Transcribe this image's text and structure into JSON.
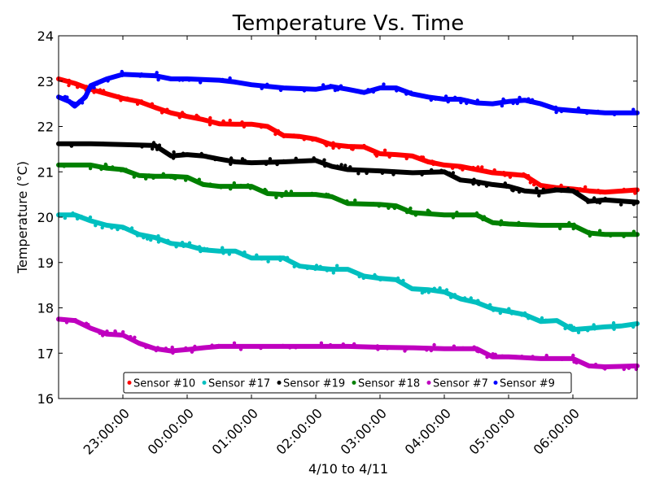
{
  "chart_data": {
    "type": "scatter",
    "title": "Temperature Vs. Time",
    "xlabel": "4/10 to 4/11",
    "ylabel": "Temperature (°C)",
    "xlim": [
      "2023-04-10T22:00:00",
      "2023-04-11T07:00:00"
    ],
    "ylim": [
      16,
      24
    ],
    "yticks": [
      16,
      17,
      18,
      19,
      20,
      21,
      22,
      23,
      24
    ],
    "xticks": [
      {
        "t": "2023-04-10T23:00:00",
        "label": "23:00:00"
      },
      {
        "t": "2023-04-11T00:00:00",
        "label": "00:00:00"
      },
      {
        "t": "2023-04-11T01:00:00",
        "label": "01:00:00"
      },
      {
        "t": "2023-04-11T02:00:00",
        "label": "02:00:00"
      },
      {
        "t": "2023-04-11T03:00:00",
        "label": "03:00:00"
      },
      {
        "t": "2023-04-11T04:00:00",
        "label": "04:00:00"
      },
      {
        "t": "2023-04-11T05:00:00",
        "label": "05:00:00"
      },
      {
        "t": "2023-04-11T06:00:00",
        "label": "06:00:00"
      }
    ],
    "grid": false,
    "legend": {
      "placement": "bottom-center",
      "ncol": 6
    },
    "series": [
      {
        "name": "Sensor #10",
        "color": "#ff0000",
        "points": [
          [
            "2023-04-10T22:00:00",
            23.05
          ],
          [
            "2023-04-10T22:15:00",
            22.95
          ],
          [
            "2023-04-10T22:30:00",
            22.82
          ],
          [
            "2023-04-10T22:45:00",
            22.72
          ],
          [
            "2023-04-10T23:00:00",
            22.62
          ],
          [
            "2023-04-10T23:15:00",
            22.55
          ],
          [
            "2023-04-10T23:30:00",
            22.42
          ],
          [
            "2023-04-10T23:45:00",
            22.3
          ],
          [
            "2023-04-11T00:00:00",
            22.22
          ],
          [
            "2023-04-11T00:15:00",
            22.15
          ],
          [
            "2023-04-11T00:30:00",
            22.06
          ],
          [
            "2023-04-11T00:45:00",
            22.05
          ],
          [
            "2023-04-11T01:00:00",
            22.05
          ],
          [
            "2023-04-11T01:15:00",
            22.0
          ],
          [
            "2023-04-11T01:30:00",
            21.8
          ],
          [
            "2023-04-11T01:45:00",
            21.78
          ],
          [
            "2023-04-11T02:00:00",
            21.72
          ],
          [
            "2023-04-11T02:15:00",
            21.6
          ],
          [
            "2023-04-11T02:30:00",
            21.56
          ],
          [
            "2023-04-11T02:45:00",
            21.55
          ],
          [
            "2023-04-11T03:00:00",
            21.4
          ],
          [
            "2023-04-11T03:15:00",
            21.38
          ],
          [
            "2023-04-11T03:30:00",
            21.35
          ],
          [
            "2023-04-11T03:45:00",
            21.22
          ],
          [
            "2023-04-11T04:00:00",
            21.15
          ],
          [
            "2023-04-11T04:15:00",
            21.12
          ],
          [
            "2023-04-11T04:30:00",
            21.05
          ],
          [
            "2023-04-11T04:45:00",
            20.98
          ],
          [
            "2023-04-11T05:00:00",
            20.95
          ],
          [
            "2023-04-11T05:15:00",
            20.92
          ],
          [
            "2023-04-11T05:30:00",
            20.7
          ],
          [
            "2023-04-11T05:45:00",
            20.65
          ],
          [
            "2023-04-11T06:00:00",
            20.62
          ],
          [
            "2023-04-11T06:15:00",
            20.58
          ],
          [
            "2023-04-11T06:30:00",
            20.55
          ],
          [
            "2023-04-11T07:00:00",
            20.6
          ]
        ]
      },
      {
        "name": "Sensor #17",
        "color": "#00bfbf",
        "points": [
          [
            "2023-04-10T22:00:00",
            20.05
          ],
          [
            "2023-04-10T22:15:00",
            20.05
          ],
          [
            "2023-04-10T22:30:00",
            19.92
          ],
          [
            "2023-04-10T22:45:00",
            19.82
          ],
          [
            "2023-04-10T23:00:00",
            19.78
          ],
          [
            "2023-04-10T23:15:00",
            19.62
          ],
          [
            "2023-04-10T23:30:00",
            19.55
          ],
          [
            "2023-04-10T23:45:00",
            19.42
          ],
          [
            "2023-04-11T00:00:00",
            19.38
          ],
          [
            "2023-04-11T00:15:00",
            19.28
          ],
          [
            "2023-04-11T00:30:00",
            19.25
          ],
          [
            "2023-04-11T00:45:00",
            19.25
          ],
          [
            "2023-04-11T01:00:00",
            19.1
          ],
          [
            "2023-04-11T01:15:00",
            19.1
          ],
          [
            "2023-04-11T01:30:00",
            19.1
          ],
          [
            "2023-04-11T01:45:00",
            18.92
          ],
          [
            "2023-04-11T02:00:00",
            18.88
          ],
          [
            "2023-04-11T02:15:00",
            18.85
          ],
          [
            "2023-04-11T02:30:00",
            18.85
          ],
          [
            "2023-04-11T02:45:00",
            18.7
          ],
          [
            "2023-04-11T03:00:00",
            18.65
          ],
          [
            "2023-04-11T03:15:00",
            18.62
          ],
          [
            "2023-04-11T03:30:00",
            18.42
          ],
          [
            "2023-04-11T03:45:00",
            18.4
          ],
          [
            "2023-04-11T04:00:00",
            18.35
          ],
          [
            "2023-04-11T04:15:00",
            18.2
          ],
          [
            "2023-04-11T04:30:00",
            18.12
          ],
          [
            "2023-04-11T04:45:00",
            17.98
          ],
          [
            "2023-04-11T05:00:00",
            17.92
          ],
          [
            "2023-04-11T05:15:00",
            17.85
          ],
          [
            "2023-04-11T05:30:00",
            17.7
          ],
          [
            "2023-04-11T05:45:00",
            17.72
          ],
          [
            "2023-04-11T06:00:00",
            17.52
          ],
          [
            "2023-04-11T06:15:00",
            17.55
          ],
          [
            "2023-04-11T06:30:00",
            17.58
          ],
          [
            "2023-04-11T06:45:00",
            17.6
          ],
          [
            "2023-04-11T07:00:00",
            17.65
          ]
        ]
      },
      {
        "name": "Sensor #19",
        "color": "#000000",
        "points": [
          [
            "2023-04-10T22:00:00",
            21.62
          ],
          [
            "2023-04-10T22:30:00",
            21.62
          ],
          [
            "2023-04-10T23:00:00",
            21.6
          ],
          [
            "2023-04-10T23:30:00",
            21.58
          ],
          [
            "2023-04-10T23:45:00",
            21.35
          ],
          [
            "2023-04-11T00:00:00",
            21.38
          ],
          [
            "2023-04-11T00:15:00",
            21.35
          ],
          [
            "2023-04-11T00:30:00",
            21.28
          ],
          [
            "2023-04-11T00:45:00",
            21.22
          ],
          [
            "2023-04-11T01:00:00",
            21.2
          ],
          [
            "2023-04-11T01:30:00",
            21.22
          ],
          [
            "2023-04-11T02:00:00",
            21.25
          ],
          [
            "2023-04-11T02:15:00",
            21.12
          ],
          [
            "2023-04-11T02:30:00",
            21.05
          ],
          [
            "2023-04-11T03:00:00",
            21.02
          ],
          [
            "2023-04-11T03:30:00",
            20.98
          ],
          [
            "2023-04-11T04:00:00",
            21.0
          ],
          [
            "2023-04-11T04:15:00",
            20.82
          ],
          [
            "2023-04-11T04:30:00",
            20.78
          ],
          [
            "2023-04-11T04:45:00",
            20.72
          ],
          [
            "2023-04-11T05:00:00",
            20.68
          ],
          [
            "2023-04-11T05:15:00",
            20.58
          ],
          [
            "2023-04-11T05:30:00",
            20.55
          ],
          [
            "2023-04-11T05:45:00",
            20.6
          ],
          [
            "2023-04-11T06:00:00",
            20.58
          ],
          [
            "2023-04-11T06:15:00",
            20.35
          ],
          [
            "2023-04-11T06:30:00",
            20.38
          ],
          [
            "2023-04-11T07:00:00",
            20.33
          ]
        ]
      },
      {
        "name": "Sensor #18",
        "color": "#008000",
        "points": [
          [
            "2023-04-10T22:00:00",
            21.15
          ],
          [
            "2023-04-10T22:30:00",
            21.15
          ],
          [
            "2023-04-10T22:45:00",
            21.08
          ],
          [
            "2023-04-10T23:00:00",
            21.05
          ],
          [
            "2023-04-10T23:15:00",
            20.92
          ],
          [
            "2023-04-10T23:30:00",
            20.9
          ],
          [
            "2023-04-10T23:45:00",
            20.9
          ],
          [
            "2023-04-11T00:00:00",
            20.88
          ],
          [
            "2023-04-11T00:15:00",
            20.72
          ],
          [
            "2023-04-11T00:30:00",
            20.68
          ],
          [
            "2023-04-11T00:45:00",
            20.68
          ],
          [
            "2023-04-11T01:00:00",
            20.68
          ],
          [
            "2023-04-11T01:15:00",
            20.52
          ],
          [
            "2023-04-11T01:30:00",
            20.5
          ],
          [
            "2023-04-11T02:00:00",
            20.5
          ],
          [
            "2023-04-11T02:15:00",
            20.45
          ],
          [
            "2023-04-11T02:30:00",
            20.3
          ],
          [
            "2023-04-11T03:00:00",
            20.28
          ],
          [
            "2023-04-11T03:15:00",
            20.25
          ],
          [
            "2023-04-11T03:30:00",
            20.1
          ],
          [
            "2023-04-11T04:00:00",
            20.05
          ],
          [
            "2023-04-11T04:30:00",
            20.05
          ],
          [
            "2023-04-11T04:45:00",
            19.88
          ],
          [
            "2023-04-11T05:00:00",
            19.85
          ],
          [
            "2023-04-11T05:30:00",
            19.82
          ],
          [
            "2023-04-11T06:00:00",
            19.82
          ],
          [
            "2023-04-11T06:15:00",
            19.65
          ],
          [
            "2023-04-11T06:30:00",
            19.62
          ],
          [
            "2023-04-11T07:00:00",
            19.62
          ]
        ]
      },
      {
        "name": "Sensor #7",
        "color": "#bf00bf",
        "points": [
          [
            "2023-04-10T22:00:00",
            17.75
          ],
          [
            "2023-04-10T22:15:00",
            17.72
          ],
          [
            "2023-04-10T22:30:00",
            17.55
          ],
          [
            "2023-04-10T22:45:00",
            17.42
          ],
          [
            "2023-04-10T23:00:00",
            17.4
          ],
          [
            "2023-04-10T23:15:00",
            17.22
          ],
          [
            "2023-04-10T23:30:00",
            17.1
          ],
          [
            "2023-04-10T23:45:00",
            17.05
          ],
          [
            "2023-04-11T00:00:00",
            17.08
          ],
          [
            "2023-04-11T00:15:00",
            17.12
          ],
          [
            "2023-04-11T00:30:00",
            17.15
          ],
          [
            "2023-04-11T01:00:00",
            17.15
          ],
          [
            "2023-04-11T01:30:00",
            17.15
          ],
          [
            "2023-04-11T02:00:00",
            17.15
          ],
          [
            "2023-04-11T02:30:00",
            17.15
          ],
          [
            "2023-04-11T03:00:00",
            17.13
          ],
          [
            "2023-04-11T03:30:00",
            17.12
          ],
          [
            "2023-04-11T04:00:00",
            17.1
          ],
          [
            "2023-04-11T04:30:00",
            17.1
          ],
          [
            "2023-04-11T04:45:00",
            16.92
          ],
          [
            "2023-04-11T05:00:00",
            16.92
          ],
          [
            "2023-04-11T05:30:00",
            16.88
          ],
          [
            "2023-04-11T06:00:00",
            16.88
          ],
          [
            "2023-04-11T06:15:00",
            16.72
          ],
          [
            "2023-04-11T06:30:00",
            16.7
          ],
          [
            "2023-04-11T07:00:00",
            16.72
          ]
        ]
      },
      {
        "name": "Sensor #9",
        "color": "#0000ff",
        "points": [
          [
            "2023-04-10T22:00:00",
            22.65
          ],
          [
            "2023-04-10T22:10:00",
            22.55
          ],
          [
            "2023-04-10T22:15:00",
            22.45
          ],
          [
            "2023-04-10T22:25:00",
            22.65
          ],
          [
            "2023-04-10T22:30:00",
            22.9
          ],
          [
            "2023-04-10T22:45:00",
            23.05
          ],
          [
            "2023-04-10T23:00:00",
            23.15
          ],
          [
            "2023-04-10T23:30:00",
            23.12
          ],
          [
            "2023-04-10T23:45:00",
            23.05
          ],
          [
            "2023-04-11T00:00:00",
            23.05
          ],
          [
            "2023-04-11T00:30:00",
            23.02
          ],
          [
            "2023-04-11T00:45:00",
            22.98
          ],
          [
            "2023-04-11T01:00:00",
            22.92
          ],
          [
            "2023-04-11T01:30:00",
            22.85
          ],
          [
            "2023-04-11T02:00:00",
            22.82
          ],
          [
            "2023-04-11T02:15:00",
            22.88
          ],
          [
            "2023-04-11T02:30:00",
            22.82
          ],
          [
            "2023-04-11T02:45:00",
            22.75
          ],
          [
            "2023-04-11T03:00:00",
            22.85
          ],
          [
            "2023-04-11T03:15:00",
            22.85
          ],
          [
            "2023-04-11T03:30:00",
            22.72
          ],
          [
            "2023-04-11T03:45:00",
            22.65
          ],
          [
            "2023-04-11T04:00:00",
            22.6
          ],
          [
            "2023-04-11T04:15:00",
            22.6
          ],
          [
            "2023-04-11T04:30:00",
            22.52
          ],
          [
            "2023-04-11T04:45:00",
            22.5
          ],
          [
            "2023-04-11T05:00:00",
            22.55
          ],
          [
            "2023-04-11T05:15:00",
            22.58
          ],
          [
            "2023-04-11T05:30:00",
            22.5
          ],
          [
            "2023-04-11T05:45:00",
            22.38
          ],
          [
            "2023-04-11T06:00:00",
            22.35
          ],
          [
            "2023-04-11T06:30:00",
            22.3
          ],
          [
            "2023-04-11T07:00:00",
            22.3
          ]
        ]
      }
    ]
  }
}
